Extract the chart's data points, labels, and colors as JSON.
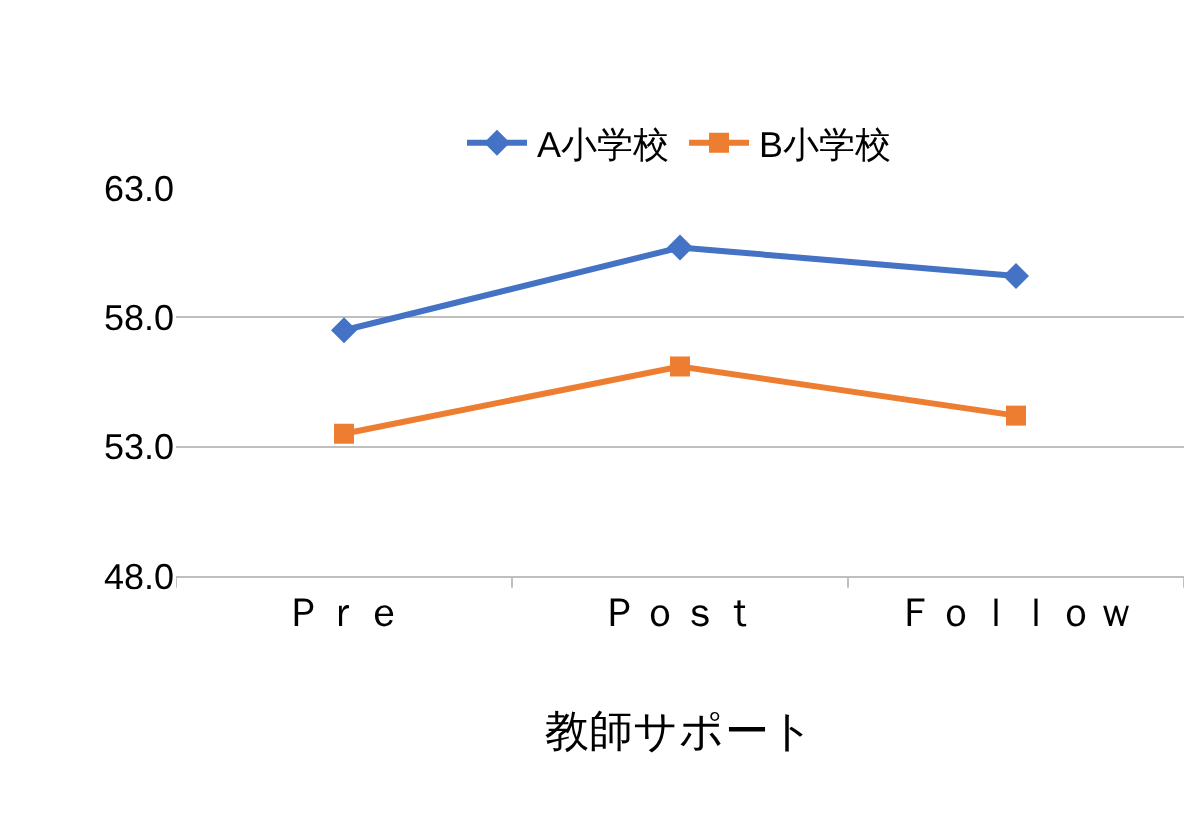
{
  "chart_data": {
    "type": "line",
    "xlabel": "教師サポート",
    "categories": [
      "Ｐｒｅ",
      "Ｐｏｓｔ",
      "Ｆｏｌｌｏｗ"
    ],
    "series": [
      {
        "name": "A小学校",
        "color": "#4472c4",
        "marker": "diamond",
        "values": [
          57.5,
          60.7,
          59.6
        ]
      },
      {
        "name": "B小学校",
        "color": "#ed7d31",
        "marker": "square",
        "values": [
          53.5,
          56.1,
          54.2
        ]
      }
    ],
    "ylim": [
      48,
      63
    ],
    "yticks": [
      {
        "value": 48,
        "label": "48.0"
      },
      {
        "value": 53,
        "label": "53.0"
      },
      {
        "value": 58,
        "label": "58.0"
      },
      {
        "value": 63,
        "label": "63.0"
      }
    ],
    "grid": "y",
    "legend": "top",
    "line_style": "solid"
  }
}
